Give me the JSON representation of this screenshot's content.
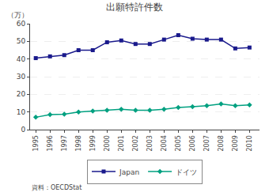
{
  "chart_data": {
    "type": "line",
    "title": "出願特許件数",
    "ylabel": "（万）",
    "annotations": [
      "資料：OECDStat"
    ],
    "x": [
      1995,
      1996,
      1997,
      1998,
      1999,
      2000,
      2001,
      2002,
      2003,
      2004,
      2005,
      2006,
      2007,
      2008,
      2009,
      2010
    ],
    "series": [
      {
        "name": "Japan",
        "color": "#1a1a8c",
        "marker": "square",
        "values": [
          40.5,
          41.5,
          42.2,
          45.0,
          45.0,
          49.5,
          50.5,
          48.5,
          48.5,
          51.0,
          53.5,
          51.5,
          51.0,
          51.0,
          46.0,
          46.5
        ]
      },
      {
        "name": "ドイツ",
        "color": "#00a080",
        "marker": "diamond",
        "values": [
          7.0,
          8.5,
          8.7,
          10.0,
          10.5,
          11.0,
          11.5,
          11.0,
          11.0,
          11.5,
          12.5,
          13.0,
          13.5,
          14.5,
          13.5,
          14.0
        ]
      }
    ],
    "xlim": [
      1994.6,
      2010.7
    ],
    "xticks": [
      1995,
      1996,
      1997,
      1998,
      1999,
      2000,
      2001,
      2002,
      2003,
      2004,
      2005,
      2006,
      2007,
      2008,
      2009,
      2010
    ],
    "ylim": [
      0,
      60
    ],
    "yticks": [
      0,
      10,
      20,
      30,
      40,
      50,
      60
    ],
    "grid": true,
    "legend": "bottom"
  }
}
